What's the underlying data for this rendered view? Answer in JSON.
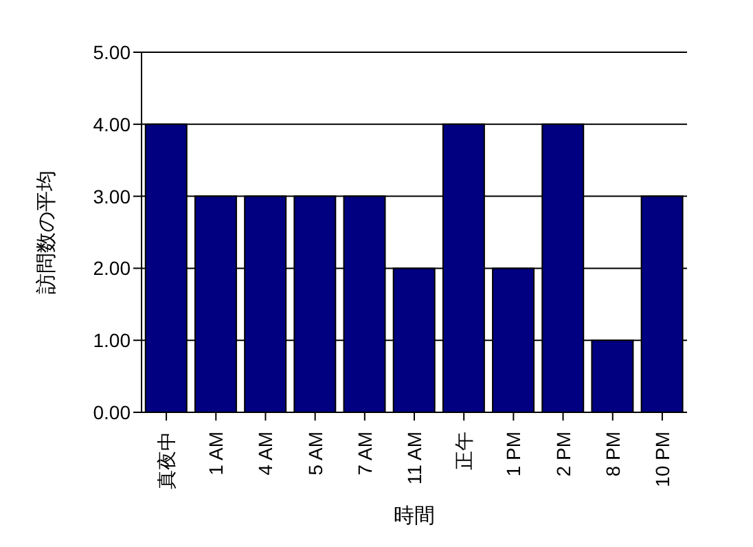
{
  "chart_data": {
    "type": "bar",
    "xlabel": "時間",
    "ylabel": "訪問数の平均",
    "categories": [
      "真夜中",
      "1 AM",
      "4 AM",
      "5 AM",
      "7 AM",
      "11 AM",
      "正午",
      "1 PM",
      "2 PM",
      "8 PM",
      "10 PM"
    ],
    "values": [
      4,
      3,
      3,
      3,
      3,
      2,
      4,
      2,
      4,
      1,
      3
    ],
    "color": "#000080",
    "ylim": [
      0,
      5
    ],
    "yticks": [
      {
        "value": 0,
        "label": "0.00"
      },
      {
        "value": 1,
        "label": "1.00"
      },
      {
        "value": 2,
        "label": "2.00"
      },
      {
        "value": 3,
        "label": "3.00"
      },
      {
        "value": 4,
        "label": "4.00"
      },
      {
        "value": 5,
        "label": "5.00"
      }
    ],
    "grid": "y",
    "legend": false
  }
}
